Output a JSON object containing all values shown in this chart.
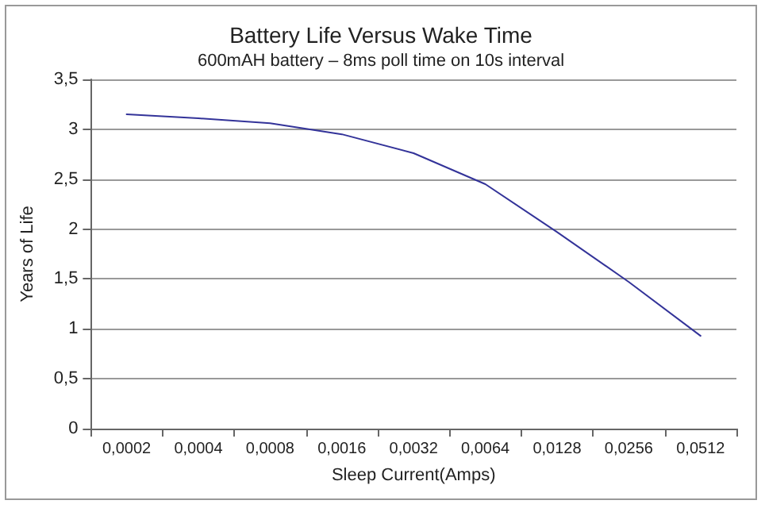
{
  "chart_data": {
    "type": "line",
    "title": "Battery Life Versus Wake Time",
    "subtitle": "600mAH battery – 8ms poll time on 10s interval",
    "xlabel": "Sleep Current(Amps)",
    "ylabel": "Years of Life",
    "categories": [
      "0,0002",
      "0,0004",
      "0,0008",
      "0,0016",
      "0,0032",
      "0,0064",
      "0,0128",
      "0,0256",
      "0,0512"
    ],
    "series": [
      {
        "color": "#333399",
        "values": [
          3.15,
          3.11,
          3.06,
          2.95,
          2.76,
          2.45,
          1.97,
          1.47,
          0.93
        ]
      }
    ],
    "ylim": [
      0,
      3.5
    ],
    "yticks": [
      0,
      {
        "value": 0.5,
        "label": "0,5"
      },
      1,
      {
        "value": 1.5,
        "label": "1,5"
      },
      2,
      {
        "value": 2.5,
        "label": "2,5"
      },
      3,
      {
        "value": 3.5,
        "label": "3,5"
      }
    ],
    "grid": "y",
    "marker": "none",
    "line_style": "solid"
  }
}
